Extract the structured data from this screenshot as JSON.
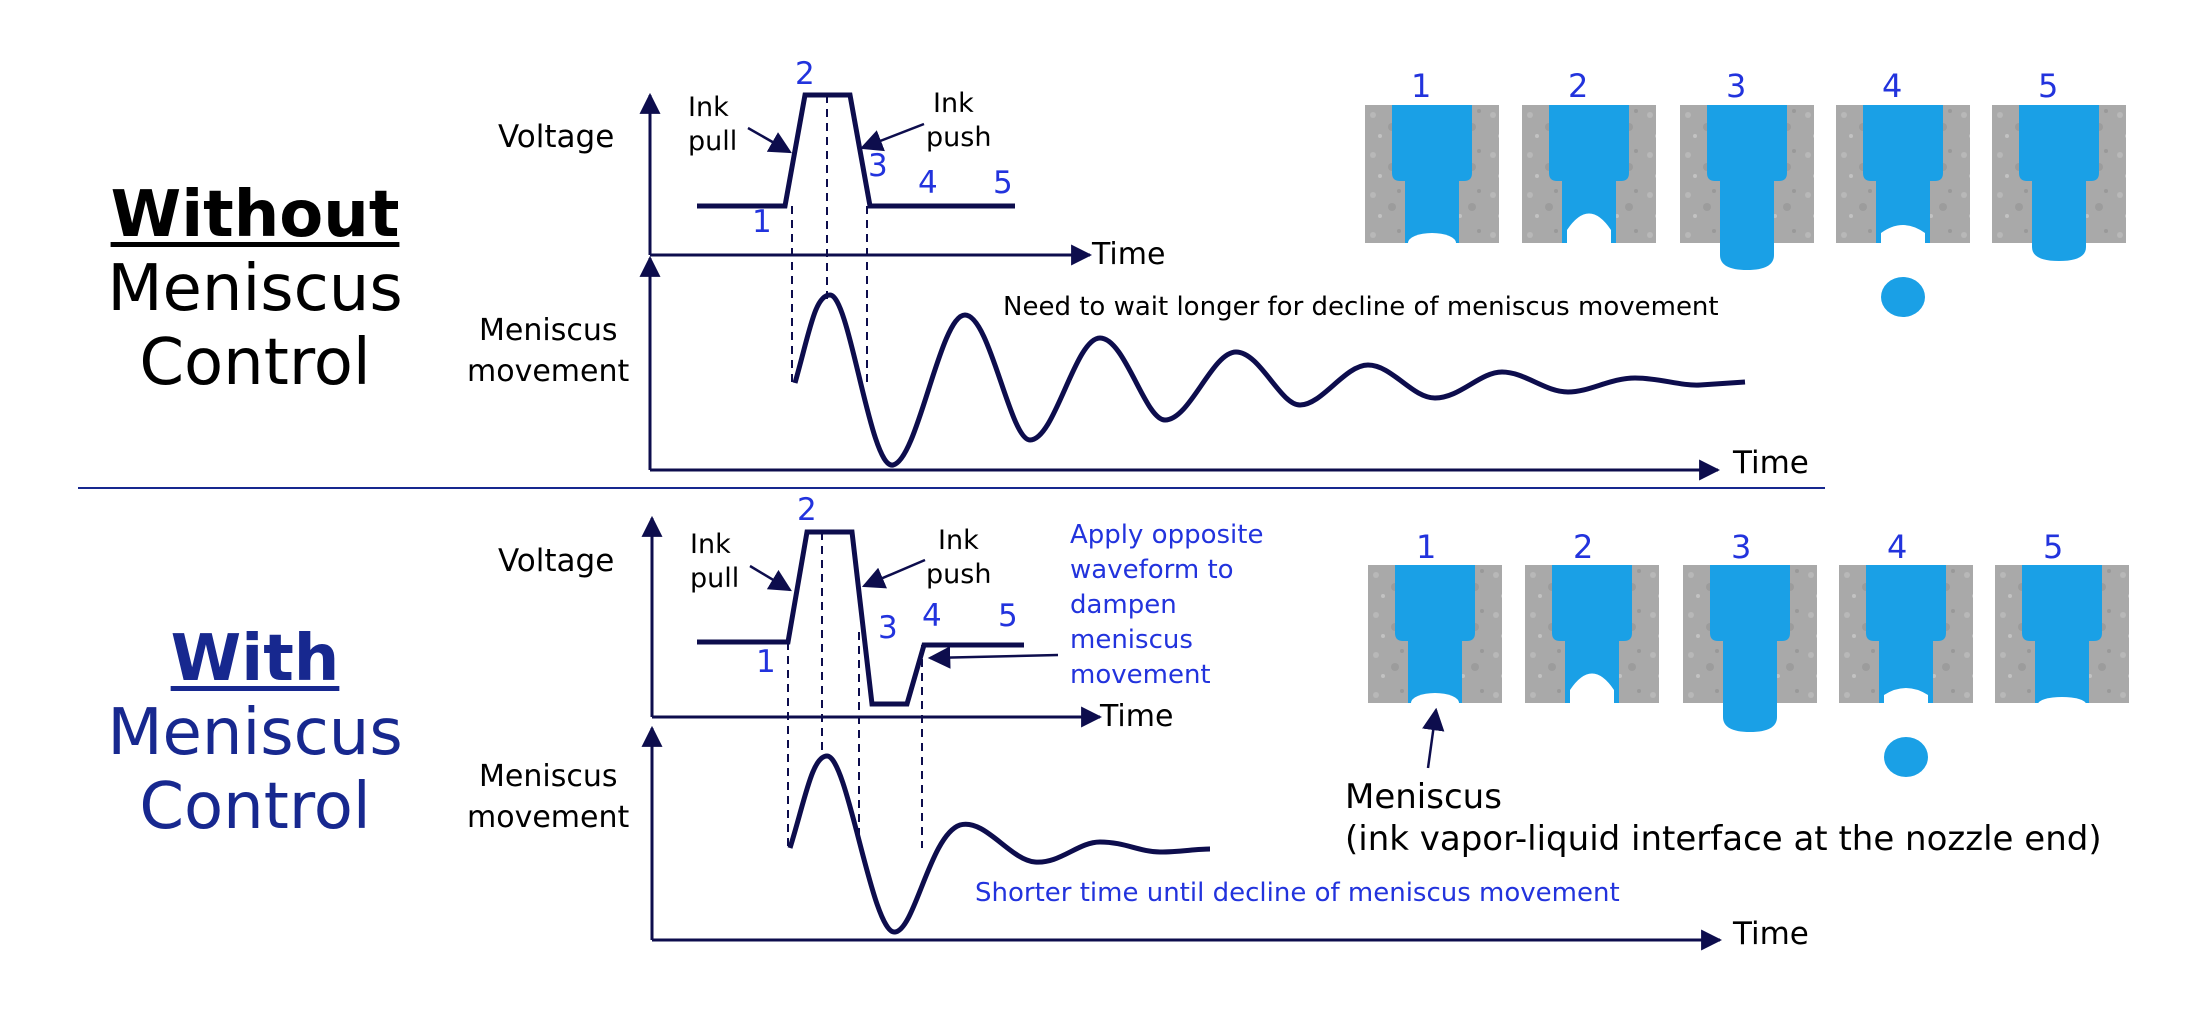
{
  "colors": {
    "navy": "#17288f",
    "curve": "#0d0d4d",
    "blue_text": "#2233dd",
    "ink": "#1aa0e6",
    "metal": "#a9a9a9",
    "metal_dark": "#8f8f8f"
  },
  "top": {
    "title_bold": "Without",
    "title_line2": "Meniscus",
    "title_line3": "Control",
    "voltage_label": "Voltage",
    "ink_pull": [
      "Ink",
      "pull"
    ],
    "ink_push": [
      "Ink",
      "push"
    ],
    "time_label": "Time",
    "meniscus_label": [
      "Meniscus",
      "movement"
    ],
    "note": "Need to wait longer for decline of meniscus movement",
    "points": [
      "1",
      "2",
      "3",
      "4",
      "5"
    ],
    "nozzle_numbers": [
      "1",
      "2",
      "3",
      "4",
      "5"
    ]
  },
  "bottom": {
    "title_bold": "With",
    "title_line2": "Meniscus",
    "title_line3": "Control",
    "voltage_label": "Voltage",
    "ink_pull": [
      "Ink",
      "pull"
    ],
    "ink_push": [
      "Ink",
      "push"
    ],
    "time_label": "Time",
    "meniscus_label": [
      "Meniscus",
      "movement"
    ],
    "apply_note": [
      "Apply opposite",
      "waveform to",
      "dampen",
      "meniscus",
      "movement"
    ],
    "note": "Shorter time until decline of meniscus movement",
    "points": [
      "1",
      "2",
      "3",
      "4",
      "5"
    ],
    "nozzle_numbers": [
      "1",
      "2",
      "3",
      "4",
      "5"
    ],
    "meniscus_callout": [
      "Meniscus",
      "(ink vapor-liquid interface at the nozzle end)"
    ]
  },
  "nozzle_icon": "nozzle-cross-section-icon",
  "droplet_icon": "ink-droplet-icon"
}
